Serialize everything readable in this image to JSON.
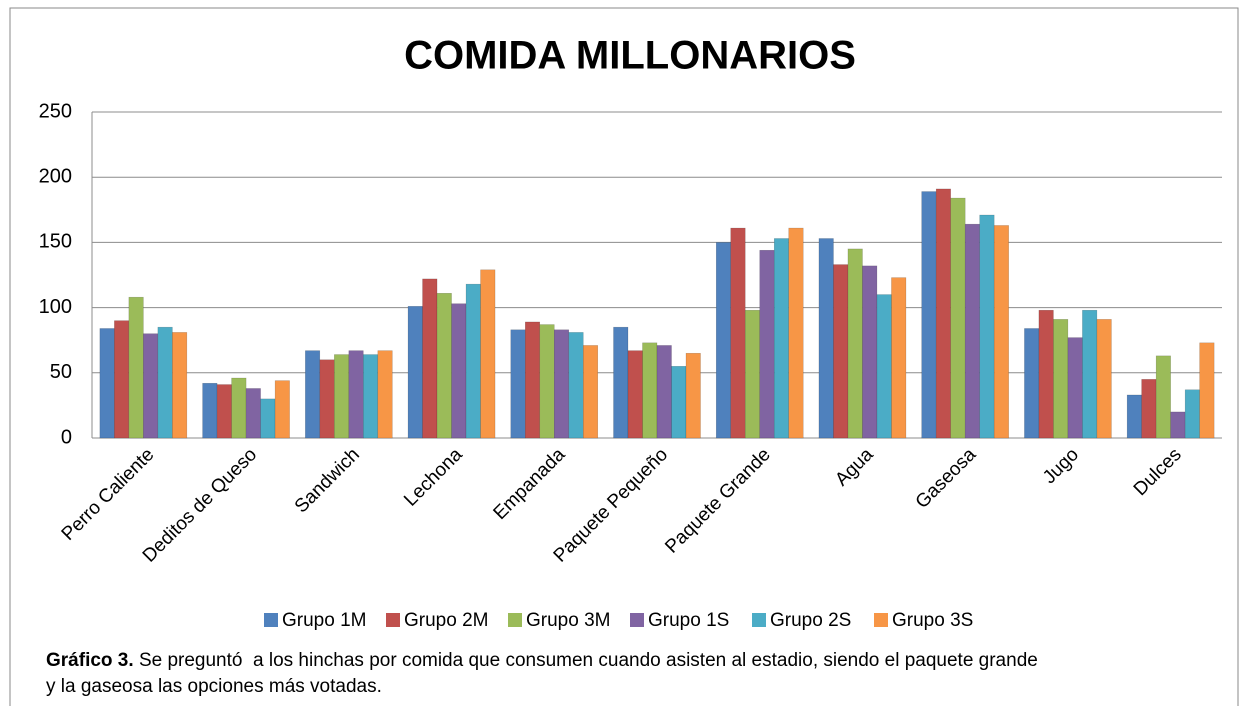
{
  "chart_data": {
    "type": "bar",
    "title": "COMIDA MILLONARIOS",
    "categories": [
      "Perro Caliente",
      "Deditos de Queso",
      "Sandwich",
      "Lechona",
      "Empanada",
      "Paquete Pequeño",
      "Paquete Grande",
      "Agua",
      "Gaseosa",
      "Jugo",
      "Dulces"
    ],
    "series": [
      {
        "name": "Grupo 1M",
        "color": "#4f81bd",
        "values": [
          84,
          42,
          67,
          101,
          83,
          85,
          150,
          153,
          189,
          84,
          33
        ]
      },
      {
        "name": "Grupo 2M",
        "color": "#c0504d",
        "values": [
          90,
          41,
          60,
          122,
          89,
          67,
          161,
          133,
          191,
          98,
          45
        ]
      },
      {
        "name": "Grupo 3M",
        "color": "#9bbb59",
        "values": [
          108,
          46,
          64,
          111,
          87,
          73,
          98,
          145,
          184,
          91,
          63
        ]
      },
      {
        "name": "Grupo 1S",
        "color": "#8064a2",
        "values": [
          80,
          38,
          67,
          103,
          83,
          71,
          144,
          132,
          164,
          77,
          20
        ]
      },
      {
        "name": "Grupo 2S",
        "color": "#4bacc6",
        "values": [
          85,
          30,
          64,
          118,
          81,
          55,
          153,
          110,
          171,
          98,
          37
        ]
      },
      {
        "name": "Grupo 3S",
        "color": "#f79646",
        "values": [
          81,
          44,
          67,
          129,
          71,
          65,
          161,
          123,
          163,
          91,
          73
        ]
      }
    ],
    "ylim": [
      0,
      250
    ],
    "yticks": [
      0,
      50,
      100,
      150,
      200,
      250
    ],
    "grid": true,
    "legend": "bottom"
  },
  "caption": {
    "label": "Gráfico 3.",
    "text": "Se preguntó  a los hinchas por comida que consumen cuando asisten al estadio, siendo el paquete grande y la gaseosa las opciones más votadas."
  }
}
